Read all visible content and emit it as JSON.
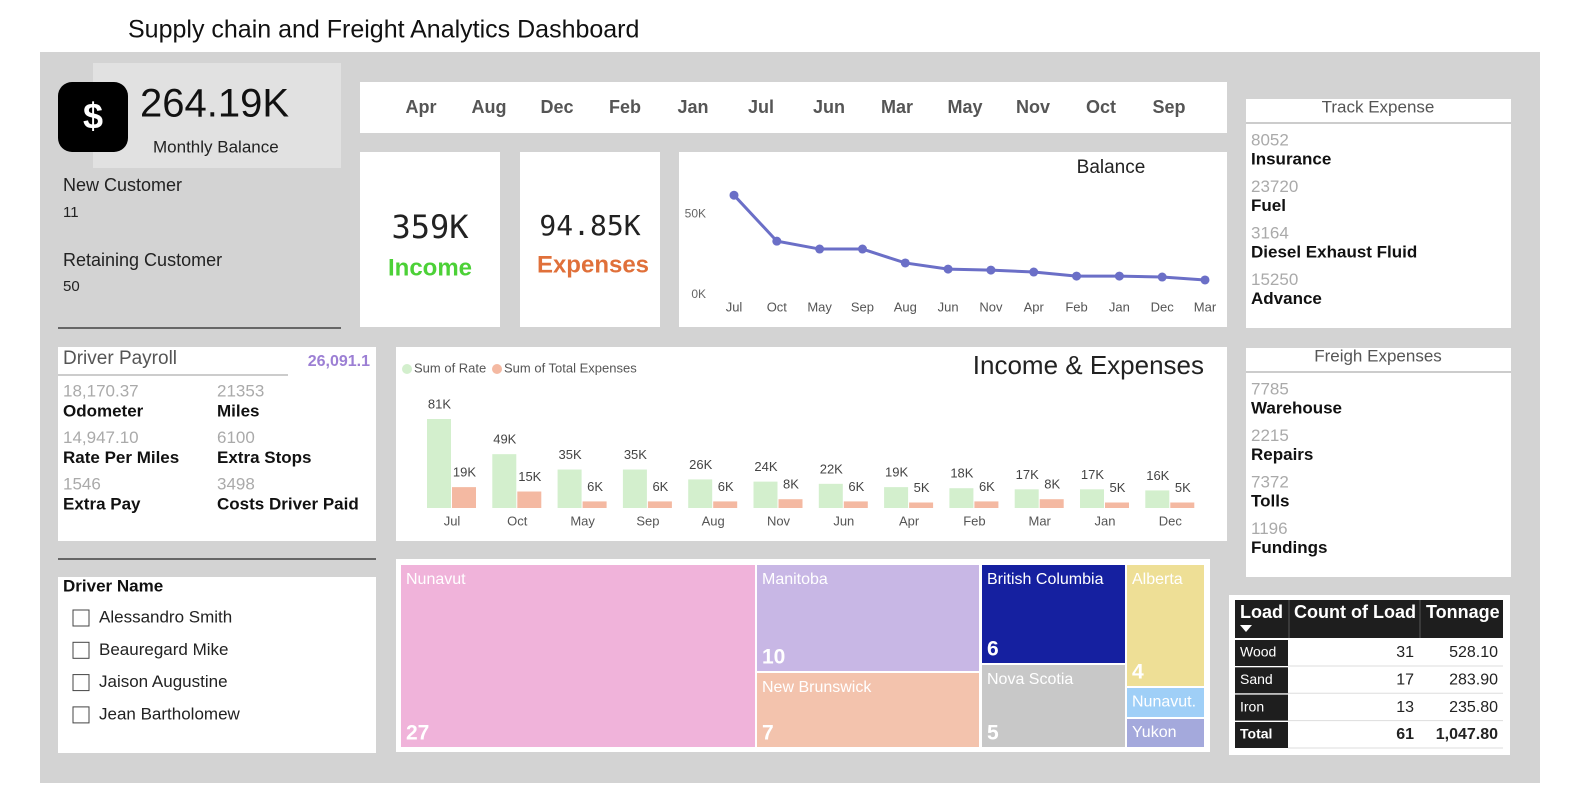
{
  "header": {
    "title": "Supply chain and Freight Analytics Dashboard"
  },
  "kpi": {
    "icon": "$",
    "value": "264.19K",
    "label": "Monthly Balance"
  },
  "customers": [
    {
      "label": "New Customer",
      "value": 11
    },
    {
      "label": "Retaining Customer",
      "value": 50
    }
  ],
  "month_slicer": [
    "Apr",
    "Aug",
    "Dec",
    "Feb",
    "Jan",
    "Jul",
    "Jun",
    "Mar",
    "May",
    "Nov",
    "Oct",
    "Sep"
  ],
  "income": {
    "value": "359K",
    "label": "Income"
  },
  "expenses": {
    "value": "94.85K",
    "label": "Expenses"
  },
  "driver_payroll": {
    "title": "Driver Payroll",
    "total": "26,091.1",
    "items": [
      {
        "value": "18,170.37",
        "label": "Odometer"
      },
      {
        "value": 21353,
        "label": "Miles"
      },
      {
        "value": "14,947.10",
        "label": "Rate Per Miles"
      },
      {
        "value": 6100,
        "label": "Extra Stops"
      },
      {
        "value": 1546,
        "label": "Extra Pay"
      },
      {
        "value": 3498,
        "label": "Costs Driver Paid"
      }
    ]
  },
  "driver_slicer": {
    "title": "Driver Name",
    "names": [
      "Alessandro Smith",
      "Beauregard Mike",
      "Jaison Augustine",
      "Jean Bartholomew"
    ]
  },
  "track_expense": {
    "title": "Track Expense",
    "items": [
      {
        "value": 8052,
        "label": "Insurance"
      },
      {
        "value": 23720,
        "label": "Fuel"
      },
      {
        "value": 3164,
        "label": "Diesel Exhaust Fluid"
      },
      {
        "value": 15250,
        "label": "Advance"
      }
    ]
  },
  "freight_expenses": {
    "title": "Freigh Expenses",
    "items": [
      {
        "value": 7785,
        "label": "Warehouse"
      },
      {
        "value": 2215,
        "label": "Repairs"
      },
      {
        "value": 7372,
        "label": "Tolls"
      },
      {
        "value": 1196,
        "label": "Fundings"
      }
    ]
  },
  "load_table": {
    "columns": [
      "Load",
      "Count of Load",
      "Tonnage"
    ],
    "rows": [
      [
        "Wood",
        31,
        "528.10"
      ],
      [
        "Sand",
        17,
        "283.90"
      ],
      [
        "Iron",
        13,
        "235.80"
      ]
    ],
    "total": [
      "Total",
      61,
      "1,047.80"
    ]
  },
  "chart_data": [
    {
      "type": "line",
      "title": "Balance",
      "color": "#6b6fc7",
      "categories": [
        "Jul",
        "Oct",
        "May",
        "Sep",
        "Aug",
        "Jun",
        "Nov",
        "Apr",
        "Feb",
        "Jan",
        "Dec",
        "Mar"
      ],
      "values": [
        61700,
        33300,
        28400,
        28400,
        19800,
        16000,
        15400,
        14200,
        11700,
        11700,
        11100,
        9300
      ],
      "ylim": [
        0,
        68000
      ],
      "yticks": [
        {
          "value": 0,
          "label": "0K"
        },
        {
          "value": 50000,
          "label": "50K"
        }
      ]
    },
    {
      "type": "bar",
      "title": "Income & Expenses",
      "categories": [
        "Jul",
        "Oct",
        "May",
        "Sep",
        "Aug",
        "Nov",
        "Jun",
        "Apr",
        "Feb",
        "Mar",
        "Jan",
        "Dec"
      ],
      "series": [
        {
          "name": "Sum of Rate",
          "color": "#d3efcd",
          "values": [
            81000,
            49000,
            35000,
            35000,
            26000,
            24000,
            22000,
            19000,
            18000,
            17000,
            17000,
            16000
          ],
          "value_labels": [
            "81K",
            "49K",
            "35K",
            "35K",
            "26K",
            "24K",
            "22K",
            "19K",
            "18K",
            "17K",
            "17K",
            "16K"
          ]
        },
        {
          "name": "Sum of Total Expenses",
          "color": "#f4b9a2",
          "values": [
            19000,
            15000,
            6000,
            6000,
            6000,
            8000,
            6000,
            5000,
            6000,
            8000,
            5000,
            5000
          ],
          "value_labels": [
            "19K",
            "15K",
            "6K",
            "6K",
            "6K",
            "8K",
            "6K",
            "5K",
            "6K",
            "8K",
            "5K",
            "5K"
          ]
        }
      ]
    },
    {
      "type": "treemap",
      "categories": [
        "Nunavut",
        "Manitoba",
        "New Brunswick",
        "British Columbia",
        "Nova Scotia",
        "Alberta",
        "Nunavut.",
        "Yukon"
      ],
      "values": [
        27,
        10,
        7,
        6,
        5,
        4,
        1,
        1
      ],
      "colors": [
        "#f0b3da",
        "#c8b7e5",
        "#f3c3ad",
        "#1520a0",
        "#c8c8c8",
        "#eedf96",
        "#9fcff7",
        "#a4a9dc"
      ]
    }
  ]
}
